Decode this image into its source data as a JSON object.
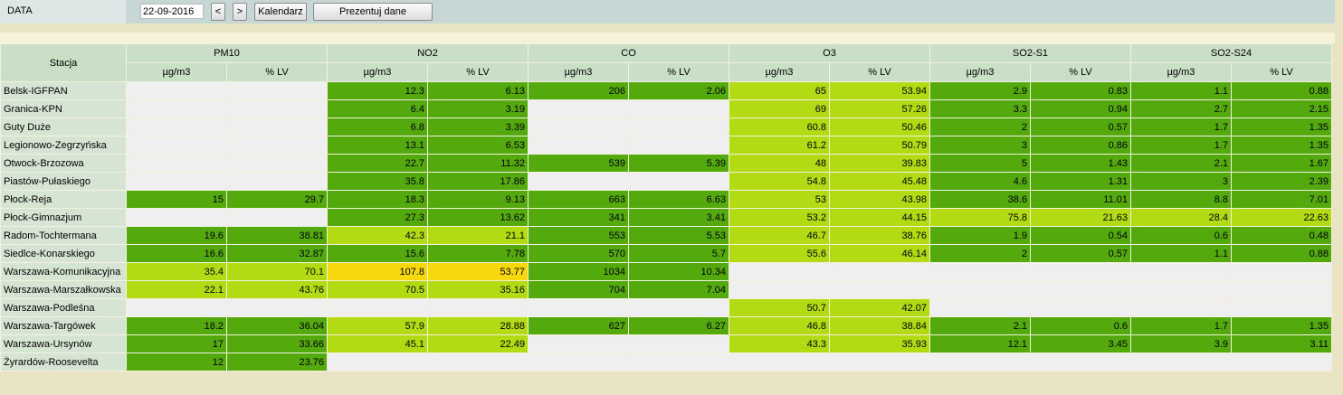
{
  "toolbar": {
    "data_label": "DATA",
    "date_value": "22-09-2016",
    "prev_label": "<",
    "next_label": ">",
    "calendar_label": "Kalendarz",
    "present_label": "Prezentuj dane"
  },
  "table": {
    "station_header": "Stacja",
    "pollutants": [
      "PM10",
      "NO2",
      "CO",
      "O3",
      "SO2-S1",
      "SO2-S24"
    ],
    "unit_label": "µg/m3",
    "lv_label": "% LV",
    "colors": {
      "empty": "#efefef",
      "dark_green": "#54a90c",
      "light_green": "#b3db14",
      "yellow": "#f7d70e"
    },
    "rows": [
      {
        "station": "Belsk-IGFPAN",
        "cells": [
          [
            "",
            ""
          ],
          [
            "12.3",
            "6.13"
          ],
          [
            "206",
            "2.06"
          ],
          [
            "65",
            "53.94"
          ],
          [
            "2.9",
            "0.83"
          ],
          [
            "1.1",
            "0.88"
          ]
        ],
        "levels": [
          "e",
          "g",
          "g",
          "l",
          "g",
          "g"
        ]
      },
      {
        "station": "Granica-KPN",
        "cells": [
          [
            "",
            ""
          ],
          [
            "6.4",
            "3.19"
          ],
          [
            "",
            ""
          ],
          [
            "69",
            "57.26"
          ],
          [
            "3.3",
            "0.94"
          ],
          [
            "2.7",
            "2.15"
          ]
        ],
        "levels": [
          "e",
          "g",
          "e",
          "l",
          "g",
          "g"
        ]
      },
      {
        "station": "Guty Duże",
        "cells": [
          [
            "",
            ""
          ],
          [
            "6.8",
            "3.39"
          ],
          [
            "",
            ""
          ],
          [
            "60.8",
            "50.46"
          ],
          [
            "2",
            "0.57"
          ],
          [
            "1.7",
            "1.35"
          ]
        ],
        "levels": [
          "e",
          "g",
          "e",
          "l",
          "g",
          "g"
        ]
      },
      {
        "station": "Legionowo-Zegrzyńska",
        "cells": [
          [
            "",
            ""
          ],
          [
            "13.1",
            "6.53"
          ],
          [
            "",
            ""
          ],
          [
            "61.2",
            "50.79"
          ],
          [
            "3",
            "0.86"
          ],
          [
            "1.7",
            "1.35"
          ]
        ],
        "levels": [
          "e",
          "g",
          "e",
          "l",
          "g",
          "g"
        ]
      },
      {
        "station": "Otwock-Brzozowa",
        "cells": [
          [
            "",
            ""
          ],
          [
            "22.7",
            "11.32"
          ],
          [
            "539",
            "5.39"
          ],
          [
            "48",
            "39.83"
          ],
          [
            "5",
            "1.43"
          ],
          [
            "2.1",
            "1.67"
          ]
        ],
        "levels": [
          "e",
          "g",
          "g",
          "l",
          "g",
          "g"
        ]
      },
      {
        "station": "Piastów-Pułaskiego",
        "cells": [
          [
            "",
            ""
          ],
          [
            "35.8",
            "17.86"
          ],
          [
            "",
            ""
          ],
          [
            "54.8",
            "45.48"
          ],
          [
            "4.6",
            "1.31"
          ],
          [
            "3",
            "2.39"
          ]
        ],
        "levels": [
          "e",
          "g",
          "e",
          "l",
          "g",
          "g"
        ]
      },
      {
        "station": "Płock-Reja",
        "cells": [
          [
            "15",
            "29.7"
          ],
          [
            "18.3",
            "9.13"
          ],
          [
            "663",
            "6.63"
          ],
          [
            "53",
            "43.98"
          ],
          [
            "38.6",
            "11.01"
          ],
          [
            "8.8",
            "7.01"
          ]
        ],
        "levels": [
          "g",
          "g",
          "g",
          "l",
          "g",
          "g"
        ]
      },
      {
        "station": "Płock-Gimnazjum",
        "cells": [
          [
            "",
            ""
          ],
          [
            "27.3",
            "13.62"
          ],
          [
            "341",
            "3.41"
          ],
          [
            "53.2",
            "44.15"
          ],
          [
            "75.8",
            "21.63"
          ],
          [
            "28.4",
            "22.63"
          ]
        ],
        "levels": [
          "e",
          "g",
          "g",
          "l",
          "l",
          "l"
        ]
      },
      {
        "station": "Radom-Tochtermana",
        "cells": [
          [
            "19.6",
            "38.81"
          ],
          [
            "42.3",
            "21.1"
          ],
          [
            "553",
            "5.53"
          ],
          [
            "46.7",
            "38.76"
          ],
          [
            "1.9",
            "0.54"
          ],
          [
            "0.6",
            "0.48"
          ]
        ],
        "levels": [
          "g",
          "l",
          "g",
          "l",
          "g",
          "g"
        ]
      },
      {
        "station": "Siedlce-Konarskiego",
        "cells": [
          [
            "16.6",
            "32.87"
          ],
          [
            "15.6",
            "7.78"
          ],
          [
            "570",
            "5.7"
          ],
          [
            "55.6",
            "46.14"
          ],
          [
            "2",
            "0.57"
          ],
          [
            "1.1",
            "0.88"
          ]
        ],
        "levels": [
          "g",
          "g",
          "g",
          "l",
          "g",
          "g"
        ]
      },
      {
        "station": "Warszawa-Komunikacyjna",
        "cells": [
          [
            "35.4",
            "70.1"
          ],
          [
            "107.8",
            "53.77"
          ],
          [
            "1034",
            "10.34"
          ],
          [
            "",
            ""
          ],
          [
            "",
            ""
          ],
          [
            "",
            ""
          ]
        ],
        "levels": [
          "l",
          "y",
          "g",
          "e",
          "e",
          "e"
        ]
      },
      {
        "station": "Warszawa-Marszałkowska",
        "cells": [
          [
            "22.1",
            "43.76"
          ],
          [
            "70.5",
            "35.16"
          ],
          [
            "704",
            "7.04"
          ],
          [
            "",
            ""
          ],
          [
            "",
            ""
          ],
          [
            "",
            ""
          ]
        ],
        "levels": [
          "l",
          "l",
          "g",
          "e",
          "e",
          "e"
        ]
      },
      {
        "station": "Warszawa-Podleśna",
        "cells": [
          [
            "",
            ""
          ],
          [
            "",
            ""
          ],
          [
            "",
            ""
          ],
          [
            "50.7",
            "42.07"
          ],
          [
            "",
            ""
          ],
          [
            "",
            ""
          ]
        ],
        "levels": [
          "e",
          "e",
          "e",
          "l",
          "e",
          "e"
        ]
      },
      {
        "station": "Warszawa-Targówek",
        "cells": [
          [
            "18.2",
            "36.04"
          ],
          [
            "57.9",
            "28.88"
          ],
          [
            "627",
            "6.27"
          ],
          [
            "46.8",
            "38.84"
          ],
          [
            "2.1",
            "0.6"
          ],
          [
            "1.7",
            "1.35"
          ]
        ],
        "levels": [
          "g",
          "l",
          "g",
          "l",
          "g",
          "g"
        ]
      },
      {
        "station": "Warszawa-Ursynów",
        "cells": [
          [
            "17",
            "33.66"
          ],
          [
            "45.1",
            "22.49"
          ],
          [
            "",
            ""
          ],
          [
            "43.3",
            "35.93"
          ],
          [
            "12.1",
            "3.45"
          ],
          [
            "3.9",
            "3.11"
          ]
        ],
        "levels": [
          "g",
          "l",
          "e",
          "l",
          "g",
          "g"
        ]
      },
      {
        "station": "Żyrardów-Roosevelta",
        "cells": [
          [
            "12",
            "23.76"
          ],
          [
            "",
            ""
          ],
          [
            "",
            ""
          ],
          [
            "",
            ""
          ],
          [
            "",
            ""
          ],
          [
            "",
            ""
          ]
        ],
        "levels": [
          "g",
          "e",
          "e",
          "e",
          "e",
          "e"
        ]
      }
    ]
  }
}
